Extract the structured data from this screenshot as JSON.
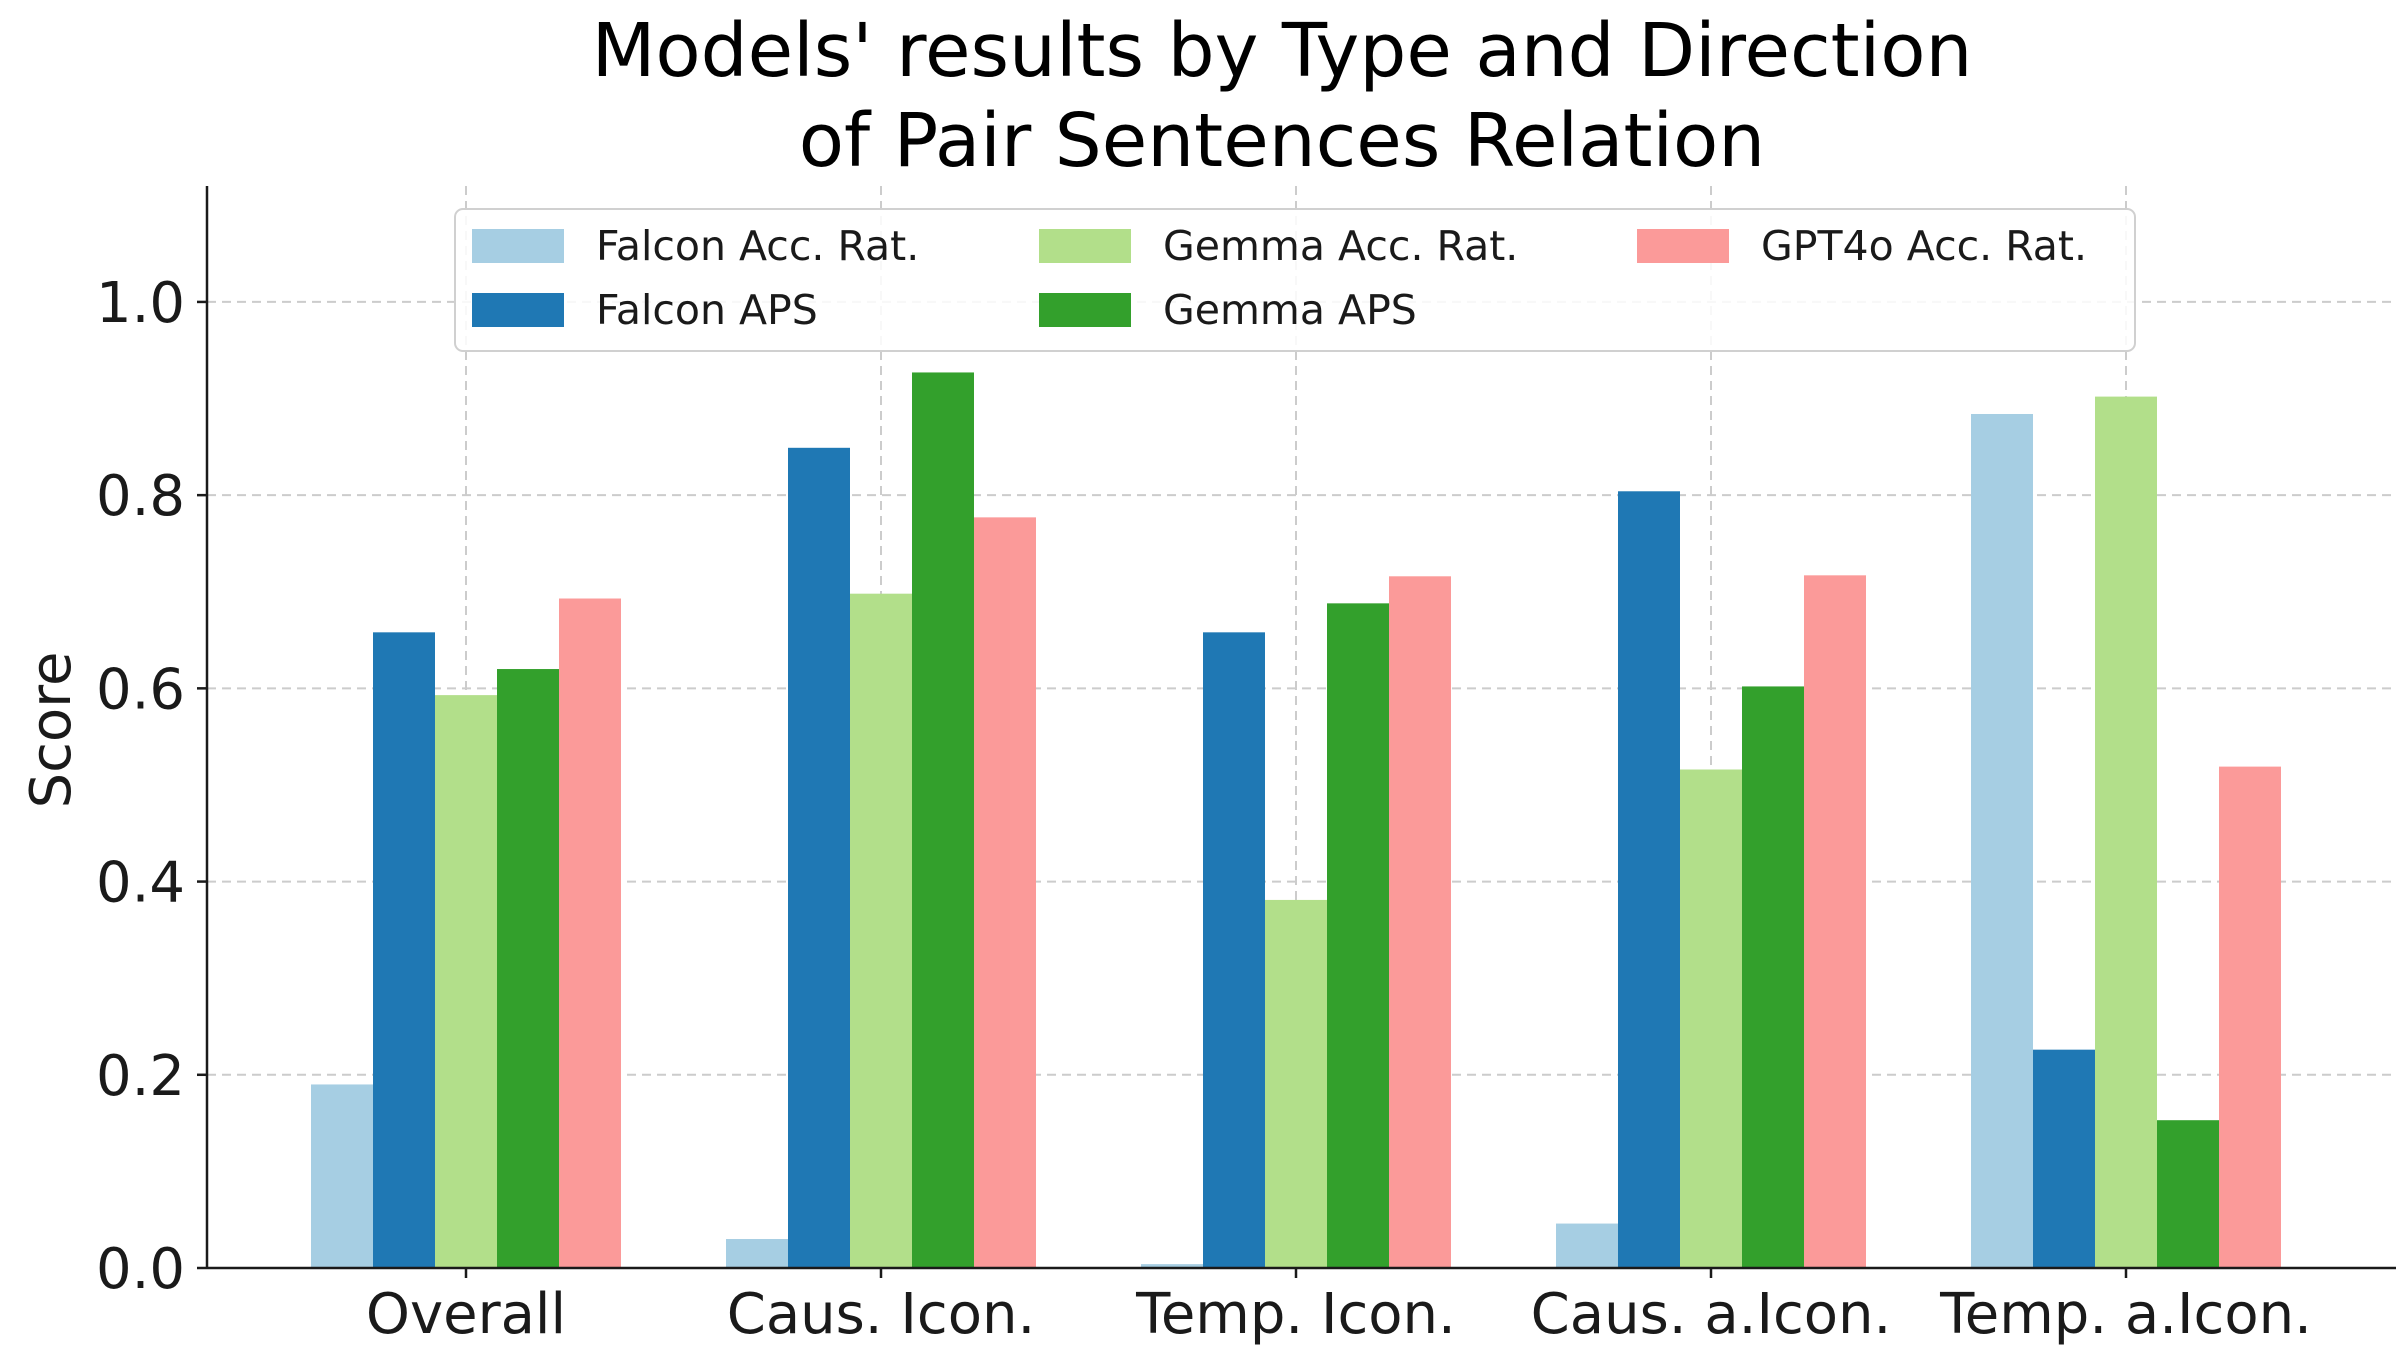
{
  "chart_data": {
    "type": "bar",
    "title_lines": [
      "Models' results by Type and Direction",
      "of Pair Sentences Relation"
    ],
    "xlabel": "",
    "ylabel": "Score",
    "ylim": [
      0,
      1.12
    ],
    "yticks": [
      0.0,
      0.2,
      0.4,
      0.6,
      0.8,
      1.0
    ],
    "ytick_labels": [
      "0.0",
      "0.2",
      "0.4",
      "0.6",
      "0.8",
      "1.0"
    ],
    "grid": true,
    "legend_position": "top",
    "categories": [
      "Overall",
      "Caus. Icon.",
      "Temp. Icon.",
      "Caus. a.Icon.",
      "Temp. a.Icon."
    ],
    "series": [
      {
        "name": "Falcon Acc. Rat.",
        "color": "#a6cee3",
        "values": [
          0.19,
          0.03,
          0.004,
          0.046,
          0.884
        ]
      },
      {
        "name": "Falcon APS",
        "color": "#1f78b4",
        "values": [
          0.658,
          0.849,
          0.658,
          0.804,
          0.226
        ]
      },
      {
        "name": "Gemma Acc. Rat.",
        "color": "#b2df8a",
        "values": [
          0.593,
          0.698,
          0.381,
          0.516,
          0.902
        ]
      },
      {
        "name": "Gemma APS",
        "color": "#33a02c",
        "values": [
          0.62,
          0.927,
          0.688,
          0.602,
          0.153
        ]
      },
      {
        "name": "GPT4o Acc. Rat.",
        "color": "#fb9a99",
        "values": [
          0.693,
          0.777,
          0.716,
          0.717,
          0.519
        ]
      }
    ]
  }
}
